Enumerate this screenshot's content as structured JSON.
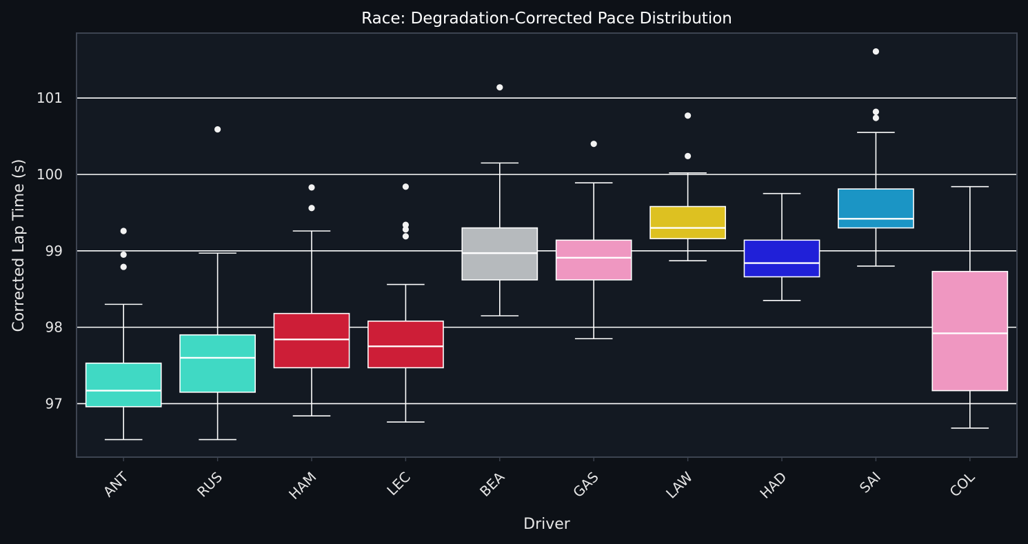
{
  "chart_data": {
    "type": "box",
    "title": "Race: Degradation-Corrected Pace Distribution",
    "xlabel": "Driver",
    "ylabel": "Corrected Lap Time (s)",
    "ylim": [
      96.3,
      101.85
    ],
    "yticks": [
      "97",
      "98",
      "99",
      "100",
      "101"
    ],
    "grid": "horizontal",
    "colors": {
      "background": "#0d1117",
      "plot_background": "#131922",
      "frame": "#3d4451",
      "grid": "#ffffff",
      "box_edge": "#ffffff",
      "outlier": "#f2f2f2"
    },
    "drivers": [
      {
        "name": "ANT",
        "color": "#40d9c4",
        "whisker_low": 96.53,
        "q1": 96.96,
        "median": 97.17,
        "q3": 97.53,
        "whisker_high": 98.3,
        "outliers": [
          98.79,
          98.95,
          99.26
        ]
      },
      {
        "name": "RUS",
        "color": "#40d9c4",
        "whisker_low": 96.53,
        "q1": 97.15,
        "median": 97.6,
        "q3": 97.9,
        "whisker_high": 98.97,
        "outliers": [
          100.59
        ]
      },
      {
        "name": "HAM",
        "color": "#cd1e37",
        "whisker_low": 96.84,
        "q1": 97.47,
        "median": 97.84,
        "q3": 98.18,
        "whisker_high": 99.26,
        "outliers": [
          99.56,
          99.83
        ]
      },
      {
        "name": "LEC",
        "color": "#cd1e37",
        "whisker_low": 96.76,
        "q1": 97.47,
        "median": 97.75,
        "q3": 98.08,
        "whisker_high": 98.56,
        "outliers": [
          99.19,
          99.28,
          99.34,
          99.84
        ]
      },
      {
        "name": "BEA",
        "color": "#b6babd",
        "whisker_low": 98.15,
        "q1": 98.62,
        "median": 98.97,
        "q3": 99.3,
        "whisker_high": 100.15,
        "outliers": [
          101.14
        ]
      },
      {
        "name": "GAS",
        "color": "#ef97c1",
        "whisker_low": 97.85,
        "q1": 98.62,
        "median": 98.91,
        "q3": 99.14,
        "whisker_high": 99.89,
        "outliers": [
          100.4
        ]
      },
      {
        "name": "LAW",
        "color": "#ddc121",
        "whisker_low": 98.87,
        "q1": 99.16,
        "median": 99.3,
        "q3": 99.58,
        "whisker_high": 100.02,
        "outliers": [
          100.24,
          100.77
        ]
      },
      {
        "name": "HAD",
        "color": "#2020d8",
        "whisker_low": 98.35,
        "q1": 98.66,
        "median": 98.84,
        "q3": 99.14,
        "whisker_high": 99.75,
        "outliers": []
      },
      {
        "name": "SAI",
        "color": "#1b95c5",
        "whisker_low": 98.8,
        "q1": 99.3,
        "median": 99.42,
        "q3": 99.81,
        "whisker_high": 100.55,
        "outliers": [
          100.74,
          100.82,
          101.61
        ]
      },
      {
        "name": "COL",
        "color": "#ef97c1",
        "whisker_low": 96.68,
        "q1": 97.17,
        "median": 97.92,
        "q3": 98.73,
        "whisker_high": 99.84,
        "outliers": []
      }
    ]
  }
}
